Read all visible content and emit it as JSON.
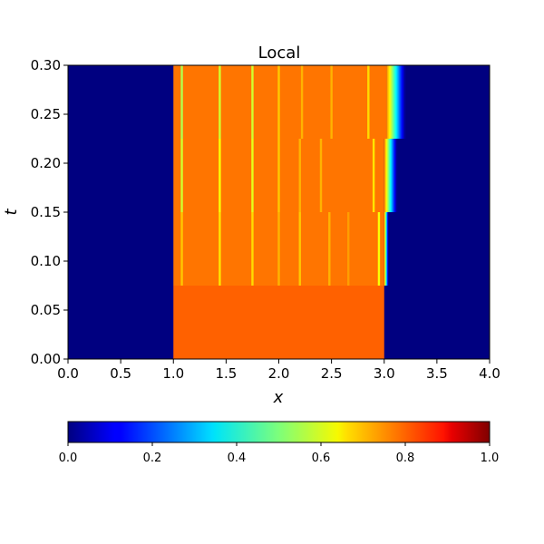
{
  "chart_data": [
    {
      "type": "heatmap",
      "title": "Local",
      "xlabel": "x",
      "ylabel": "t",
      "xlim": [
        0.0,
        4.0
      ],
      "ylim": [
        0.0,
        0.3
      ],
      "x_ticks": [
        "0.0",
        "0.5",
        "1.0",
        "1.5",
        "2.0",
        "2.5",
        "3.0",
        "3.5",
        "4.0"
      ],
      "y_ticks": [
        "0.00",
        "0.05",
        "0.10",
        "0.15",
        "0.20",
        "0.25",
        "0.30"
      ],
      "colormap": "jet",
      "background_value": 0.0,
      "bands": [
        {
          "t": [
            0.0,
            0.075
          ],
          "x_start": 1.0,
          "x_end": 3.0,
          "value": 0.78,
          "front_width": 0.0,
          "spikes": []
        },
        {
          "t": [
            0.075,
            0.15
          ],
          "x_start": 1.0,
          "x_end": 3.04,
          "value": 0.76,
          "front_width": 0.04,
          "spikes": [
            [
              1.08,
              0.68
            ],
            [
              1.44,
              0.65
            ],
            [
              1.75,
              0.66
            ],
            [
              2.0,
              0.7
            ],
            [
              2.2,
              0.68
            ],
            [
              2.48,
              0.7
            ],
            [
              2.66,
              0.72
            ],
            [
              2.95,
              0.62
            ]
          ]
        },
        {
          "t": [
            0.15,
            0.225
          ],
          "x_start": 1.0,
          "x_end": 3.12,
          "value": 0.76,
          "front_width": 0.12,
          "spikes": [
            [
              1.08,
              0.58
            ],
            [
              1.44,
              0.62
            ],
            [
              1.75,
              0.6
            ],
            [
              2.0,
              0.68
            ],
            [
              2.2,
              0.7
            ],
            [
              2.4,
              0.7
            ],
            [
              2.9,
              0.65
            ]
          ]
        },
        {
          "t": [
            0.225,
            0.3
          ],
          "x_start": 1.0,
          "x_end": 3.2,
          "value": 0.76,
          "front_width": 0.18,
          "spikes": [
            [
              1.08,
              0.55
            ],
            [
              1.44,
              0.58
            ],
            [
              1.75,
              0.58
            ],
            [
              2.0,
              0.68
            ],
            [
              2.22,
              0.7
            ],
            [
              2.5,
              0.7
            ],
            [
              2.85,
              0.66
            ]
          ]
        }
      ]
    },
    {
      "type": "colorbar",
      "colormap": "jet",
      "range": [
        0.0,
        1.0
      ],
      "ticks": [
        "0.0",
        "0.2",
        "0.4",
        "0.6",
        "0.8",
        "1.0"
      ]
    }
  ]
}
